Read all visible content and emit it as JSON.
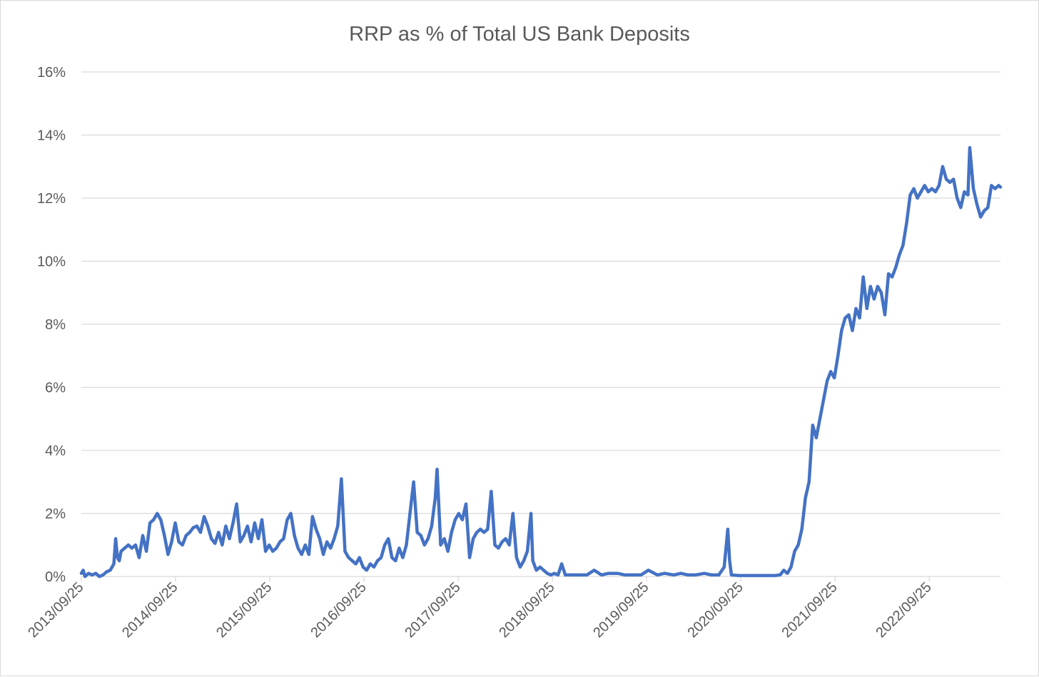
{
  "chart_data": {
    "type": "line",
    "title": "RRP as % of Total US Bank Deposits",
    "xlabel": "",
    "ylabel": "",
    "ylim": [
      0,
      16
    ],
    "grid": true,
    "legend": "none",
    "colors": {
      "series": "#4472c4",
      "grid": "#d9d9d9",
      "text": "#595959"
    },
    "y_ticks": [
      "0%",
      "2%",
      "4%",
      "6%",
      "8%",
      "10%",
      "12%",
      "14%",
      "16%"
    ],
    "x_ticks": [
      "2013/09/25",
      "2014/09/25",
      "2015/09/25",
      "2016/09/25",
      "2017/09/25",
      "2018/09/25",
      "2019/09/25",
      "2020/09/25",
      "2021/09/25",
      "2022/09/25"
    ],
    "x_range": [
      "2013/09/25",
      "2023/06/28"
    ],
    "series": [
      {
        "points": [
          [
            "2013/09/25",
            0.1
          ],
          [
            "2013/10/02",
            0.2
          ],
          [
            "2013/10/09",
            0.0
          ],
          [
            "2013/10/16",
            0.05
          ],
          [
            "2013/10/23",
            0.1
          ],
          [
            "2013/11/06",
            0.05
          ],
          [
            "2013/11/20",
            0.1
          ],
          [
            "2013/12/04",
            0.0
          ],
          [
            "2013/12/18",
            0.05
          ],
          [
            "2014/01/01",
            0.15
          ],
          [
            "2014/01/15",
            0.2
          ],
          [
            "2014/01/29",
            0.4
          ],
          [
            "2014/02/05",
            1.2
          ],
          [
            "2014/02/12",
            0.6
          ],
          [
            "2014/02/19",
            0.5
          ],
          [
            "2014/02/26",
            0.8
          ],
          [
            "2014/03/12",
            0.9
          ],
          [
            "2014/03/26",
            1.0
          ],
          [
            "2014/04/09",
            0.9
          ],
          [
            "2014/04/23",
            1.0
          ],
          [
            "2014/05/07",
            0.6
          ],
          [
            "2014/05/21",
            1.3
          ],
          [
            "2014/06/04",
            0.8
          ],
          [
            "2014/06/18",
            1.7
          ],
          [
            "2014/07/02",
            1.8
          ],
          [
            "2014/07/16",
            2.0
          ],
          [
            "2014/07/30",
            1.8
          ],
          [
            "2014/08/13",
            1.3
          ],
          [
            "2014/08/27",
            0.7
          ],
          [
            "2014/09/10",
            1.1
          ],
          [
            "2014/09/24",
            1.7
          ],
          [
            "2014/10/08",
            1.1
          ],
          [
            "2014/10/22",
            1.0
          ],
          [
            "2014/11/05",
            1.3
          ],
          [
            "2014/11/19",
            1.4
          ],
          [
            "2014/12/03",
            1.55
          ],
          [
            "2014/12/17",
            1.6
          ],
          [
            "2014/12/31",
            1.4
          ],
          [
            "2015/01/14",
            1.9
          ],
          [
            "2015/01/28",
            1.6
          ],
          [
            "2015/02/11",
            1.2
          ],
          [
            "2015/02/25",
            1.05
          ],
          [
            "2015/03/11",
            1.4
          ],
          [
            "2015/03/25",
            1.0
          ],
          [
            "2015/04/08",
            1.6
          ],
          [
            "2015/04/22",
            1.2
          ],
          [
            "2015/05/06",
            1.7
          ],
          [
            "2015/05/20",
            2.3
          ],
          [
            "2015/06/03",
            1.1
          ],
          [
            "2015/06/17",
            1.3
          ],
          [
            "2015/07/01",
            1.6
          ],
          [
            "2015/07/15",
            1.1
          ],
          [
            "2015/07/29",
            1.7
          ],
          [
            "2015/08/12",
            1.2
          ],
          [
            "2015/08/26",
            1.8
          ],
          [
            "2015/09/09",
            0.8
          ],
          [
            "2015/09/23",
            1.0
          ],
          [
            "2015/10/07",
            0.8
          ],
          [
            "2015/10/21",
            0.9
          ],
          [
            "2015/11/04",
            1.1
          ],
          [
            "2015/11/18",
            1.2
          ],
          [
            "2015/12/02",
            1.8
          ],
          [
            "2015/12/16",
            2.0
          ],
          [
            "2015/12/30",
            1.3
          ],
          [
            "2016/01/13",
            0.9
          ],
          [
            "2016/01/27",
            0.7
          ],
          [
            "2016/02/10",
            1.0
          ],
          [
            "2016/02/24",
            0.7
          ],
          [
            "2016/03/09",
            1.9
          ],
          [
            "2016/03/23",
            1.5
          ],
          [
            "2016/04/06",
            1.2
          ],
          [
            "2016/04/20",
            0.7
          ],
          [
            "2016/05/04",
            1.1
          ],
          [
            "2016/05/18",
            0.9
          ],
          [
            "2016/06/01",
            1.2
          ],
          [
            "2016/06/15",
            1.6
          ],
          [
            "2016/06/29",
            3.1
          ],
          [
            "2016/07/13",
            0.8
          ],
          [
            "2016/07/27",
            0.6
          ],
          [
            "2016/08/10",
            0.5
          ],
          [
            "2016/08/24",
            0.4
          ],
          [
            "2016/09/07",
            0.6
          ],
          [
            "2016/09/21",
            0.3
          ],
          [
            "2016/10/05",
            0.2
          ],
          [
            "2016/10/19",
            0.4
          ],
          [
            "2016/11/02",
            0.3
          ],
          [
            "2016/11/16",
            0.5
          ],
          [
            "2016/11/30",
            0.6
          ],
          [
            "2016/12/14",
            1.0
          ],
          [
            "2016/12/28",
            1.2
          ],
          [
            "2017/01/11",
            0.6
          ],
          [
            "2017/01/25",
            0.5
          ],
          [
            "2017/02/08",
            0.9
          ],
          [
            "2017/02/22",
            0.6
          ],
          [
            "2017/03/08",
            1.0
          ],
          [
            "2017/03/22",
            2.0
          ],
          [
            "2017/04/05",
            3.0
          ],
          [
            "2017/04/19",
            1.4
          ],
          [
            "2017/05/03",
            1.3
          ],
          [
            "2017/05/17",
            1.0
          ],
          [
            "2017/05/31",
            1.2
          ],
          [
            "2017/06/14",
            1.6
          ],
          [
            "2017/06/28",
            2.5
          ],
          [
            "2017/07/05",
            3.4
          ],
          [
            "2017/07/19",
            1.0
          ],
          [
            "2017/08/02",
            1.2
          ],
          [
            "2017/08/16",
            0.8
          ],
          [
            "2017/08/30",
            1.4
          ],
          [
            "2017/09/13",
            1.8
          ],
          [
            "2017/09/27",
            2.0
          ],
          [
            "2017/10/11",
            1.8
          ],
          [
            "2017/10/25",
            2.3
          ],
          [
            "2017/11/08",
            0.6
          ],
          [
            "2017/11/22",
            1.2
          ],
          [
            "2017/12/06",
            1.4
          ],
          [
            "2017/12/20",
            1.5
          ],
          [
            "2018/01/03",
            1.4
          ],
          [
            "2018/01/17",
            1.5
          ],
          [
            "2018/01/31",
            2.7
          ],
          [
            "2018/02/14",
            1.0
          ],
          [
            "2018/02/28",
            0.9
          ],
          [
            "2018/03/14",
            1.1
          ],
          [
            "2018/03/28",
            1.2
          ],
          [
            "2018/04/11",
            1.0
          ],
          [
            "2018/04/25",
            2.0
          ],
          [
            "2018/05/09",
            0.6
          ],
          [
            "2018/05/23",
            0.3
          ],
          [
            "2018/06/06",
            0.5
          ],
          [
            "2018/06/20",
            0.8
          ],
          [
            "2018/07/04",
            2.0
          ],
          [
            "2018/07/11",
            0.5
          ],
          [
            "2018/07/25",
            0.2
          ],
          [
            "2018/08/08",
            0.3
          ],
          [
            "2018/08/22",
            0.2
          ],
          [
            "2018/09/05",
            0.1
          ],
          [
            "2018/09/19",
            0.05
          ],
          [
            "2018/10/03",
            0.1
          ],
          [
            "2018/10/17",
            0.05
          ],
          [
            "2018/10/31",
            0.4
          ],
          [
            "2018/11/14",
            0.05
          ],
          [
            "2018/12/12",
            0.05
          ],
          [
            "2019/01/09",
            0.05
          ],
          [
            "2019/02/06",
            0.05
          ],
          [
            "2019/03/06",
            0.2
          ],
          [
            "2019/04/03",
            0.05
          ],
          [
            "2019/05/01",
            0.1
          ],
          [
            "2019/06/05",
            0.1
          ],
          [
            "2019/07/03",
            0.05
          ],
          [
            "2019/08/07",
            0.05
          ],
          [
            "2019/09/04",
            0.05
          ],
          [
            "2019/10/02",
            0.2
          ],
          [
            "2019/11/06",
            0.05
          ],
          [
            "2019/12/04",
            0.1
          ],
          [
            "2020/01/08",
            0.05
          ],
          [
            "2020/02/05",
            0.1
          ],
          [
            "2020/03/04",
            0.05
          ],
          [
            "2020/04/01",
            0.05
          ],
          [
            "2020/05/06",
            0.1
          ],
          [
            "2020/06/03",
            0.05
          ],
          [
            "2020/07/01",
            0.05
          ],
          [
            "2020/07/22",
            0.3
          ],
          [
            "2020/08/05",
            1.5
          ],
          [
            "2020/08/12",
            0.5
          ],
          [
            "2020/08/19",
            0.05
          ],
          [
            "2020/09/16",
            0.03
          ],
          [
            "2020/10/21",
            0.03
          ],
          [
            "2020/11/25",
            0.03
          ],
          [
            "2020/12/30",
            0.03
          ],
          [
            "2021/02/03",
            0.03
          ],
          [
            "2021/02/24",
            0.05
          ],
          [
            "2021/03/10",
            0.2
          ],
          [
            "2021/03/24",
            0.1
          ],
          [
            "2021/04/07",
            0.3
          ],
          [
            "2021/04/21",
            0.8
          ],
          [
            "2021/05/05",
            1.0
          ],
          [
            "2021/05/19",
            1.5
          ],
          [
            "2021/06/02",
            2.5
          ],
          [
            "2021/06/16",
            3.0
          ],
          [
            "2021/06/30",
            4.8
          ],
          [
            "2021/07/14",
            4.4
          ],
          [
            "2021/07/28",
            5.0
          ],
          [
            "2021/08/11",
            5.6
          ],
          [
            "2021/08/25",
            6.2
          ],
          [
            "2021/09/08",
            6.5
          ],
          [
            "2021/09/22",
            6.3
          ],
          [
            "2021/10/06",
            7.0
          ],
          [
            "2021/10/20",
            7.8
          ],
          [
            "2021/11/03",
            8.2
          ],
          [
            "2021/11/17",
            8.3
          ],
          [
            "2021/12/01",
            7.8
          ],
          [
            "2021/12/15",
            8.5
          ],
          [
            "2021/12/29",
            8.2
          ],
          [
            "2022/01/12",
            9.5
          ],
          [
            "2022/01/26",
            8.5
          ],
          [
            "2022/02/09",
            9.2
          ],
          [
            "2022/02/23",
            8.8
          ],
          [
            "2022/03/09",
            9.2
          ],
          [
            "2022/03/23",
            9.0
          ],
          [
            "2022/04/06",
            8.3
          ],
          [
            "2022/04/20",
            9.6
          ],
          [
            "2022/05/04",
            9.5
          ],
          [
            "2022/05/18",
            9.8
          ],
          [
            "2022/06/01",
            10.2
          ],
          [
            "2022/06/15",
            10.5
          ],
          [
            "2022/06/29",
            11.2
          ],
          [
            "2022/07/13",
            12.1
          ],
          [
            "2022/07/27",
            12.3
          ],
          [
            "2022/08/10",
            12.0
          ],
          [
            "2022/08/24",
            12.2
          ],
          [
            "2022/09/07",
            12.4
          ],
          [
            "2022/09/21",
            12.2
          ],
          [
            "2022/10/05",
            12.3
          ],
          [
            "2022/10/19",
            12.2
          ],
          [
            "2022/11/02",
            12.4
          ],
          [
            "2022/11/16",
            13.0
          ],
          [
            "2022/11/30",
            12.6
          ],
          [
            "2022/12/14",
            12.5
          ],
          [
            "2022/12/28",
            12.6
          ],
          [
            "2023/01/11",
            12.0
          ],
          [
            "2023/01/25",
            11.7
          ],
          [
            "2023/02/08",
            12.2
          ],
          [
            "2023/02/22",
            12.1
          ],
          [
            "2023/03/01",
            13.6
          ],
          [
            "2023/03/15",
            12.3
          ],
          [
            "2023/03/29",
            11.8
          ],
          [
            "2023/04/12",
            11.4
          ],
          [
            "2023/04/26",
            11.6
          ],
          [
            "2023/05/10",
            11.7
          ],
          [
            "2023/05/24",
            12.4
          ],
          [
            "2023/06/07",
            12.3
          ],
          [
            "2023/06/21",
            12.4
          ],
          [
            "2023/06/28",
            12.35
          ]
        ]
      }
    ]
  }
}
